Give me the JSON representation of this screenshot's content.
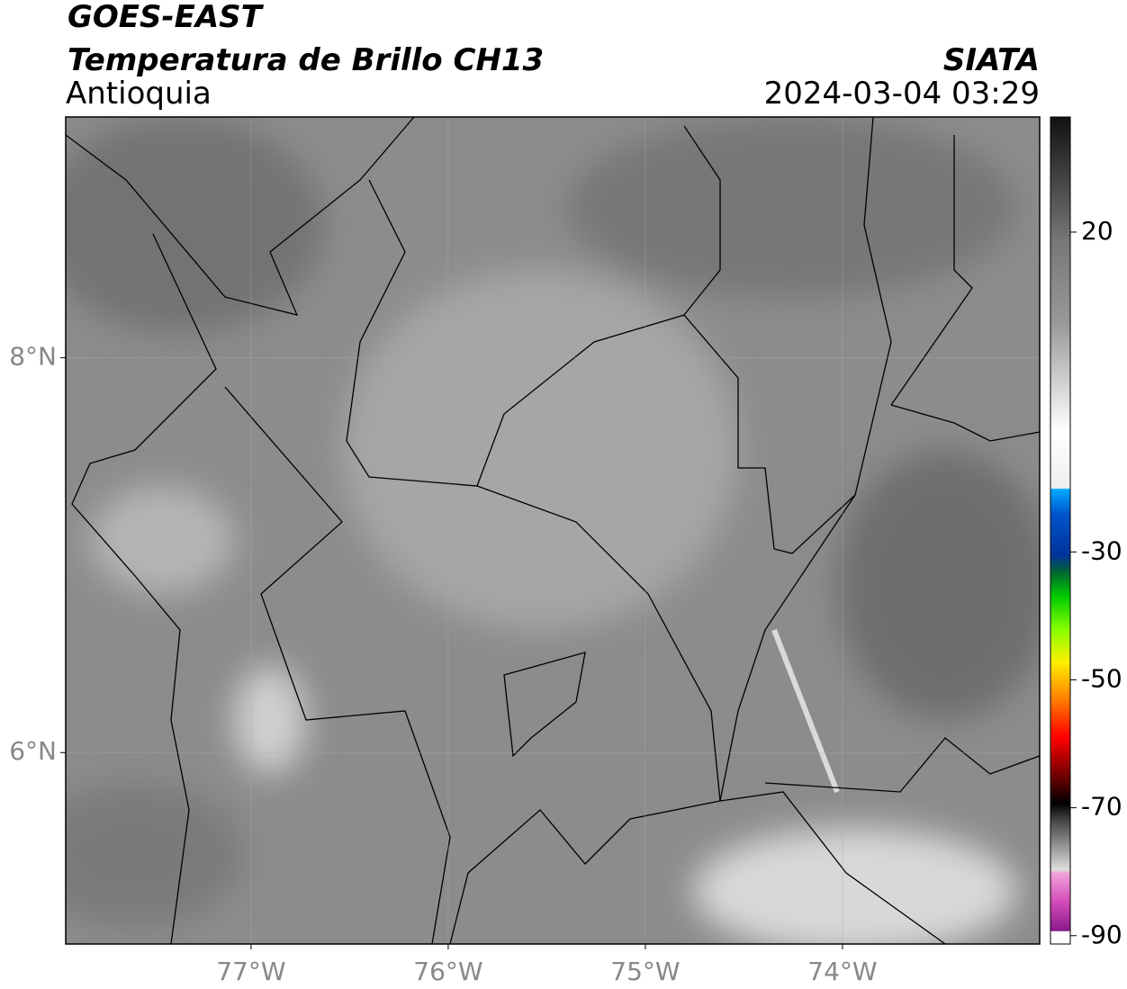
{
  "header": {
    "title": "GOES-EAST",
    "subtitle": "Temperatura de Brillo CH13",
    "region": "Antioquia",
    "source": "SIATA",
    "datetime": "2024-03-04 03:29"
  },
  "map": {
    "xlim": [
      -77.94,
      -73.0
    ],
    "ylim": [
      5.03,
      9.22
    ],
    "xticks": [
      {
        "value": -77,
        "label": "77°W"
      },
      {
        "value": -76,
        "label": "76°W"
      },
      {
        "value": -75,
        "label": "75°W"
      },
      {
        "value": -74,
        "label": "74°W"
      }
    ],
    "yticks": [
      {
        "value": 8,
        "label": "8°N"
      },
      {
        "value": 6,
        "label": "6°N"
      }
    ],
    "grid": true
  },
  "colorbar": {
    "lim": [
      -91.3,
      38
    ],
    "ticks": [
      20,
      -30,
      -50,
      -70,
      -90
    ]
  }
}
